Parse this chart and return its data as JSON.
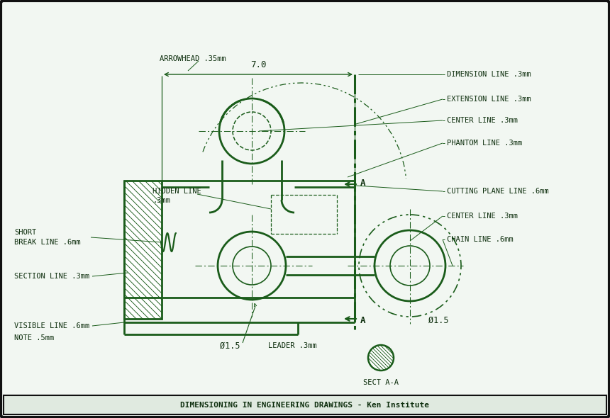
{
  "bg_color": "#f2f7f2",
  "border_color": "#111111",
  "line_color": "#1a5c1a",
  "text_color": "#0d2e0d",
  "figsize": [
    8.6,
    5.9
  ],
  "dpi": 100,
  "labels": {
    "arrowhead": "ARROWHEAD .35mm",
    "dimension_line": "DIMENSION LINE .3mm",
    "extension_line": "EXTENSION LINE .3mm",
    "center_line_t": "CENTER LINE .3mm",
    "phantom_line": "PHANTOM LINE .3mm",
    "hidden_line1": "HIDDEN LINE",
    "hidden_line2": ".3mm",
    "cutting_plane": "CUTTING PLANE LINE .6mm",
    "center_line_r": "CENTER LINE .3mm",
    "chain_line": "CHAIN LINE .6mm",
    "short_break1": "SHORT",
    "short_break2": "BREAK LINE .6mm",
    "section_line": "SECTION LINE .3mm",
    "visible_line": "VISIBLE LINE .6mm",
    "note": "NOTE .5mm",
    "leader": "LEADER .3mm",
    "phi_bot": "Ø1.5",
    "phi_right": "Ø1.5",
    "dim_7": "7.0",
    "sect_aa": "SECT A-A",
    "A_top": "A",
    "A_bot": "A"
  }
}
